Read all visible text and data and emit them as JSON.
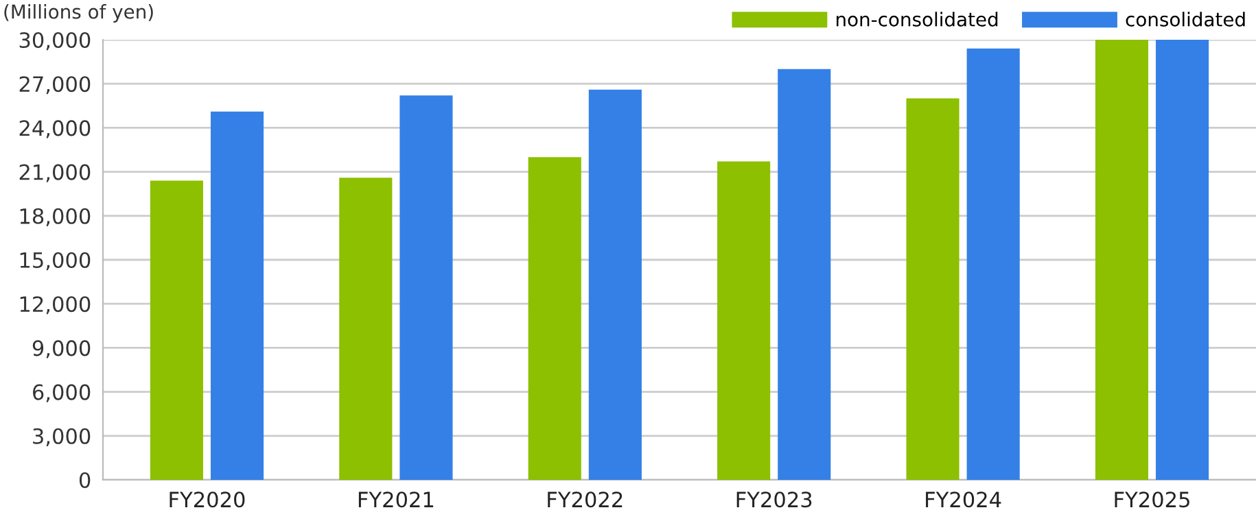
{
  "chart_data": {
    "type": "bar",
    "ylabel": "(Millions of yen)",
    "categories": [
      "FY2020",
      "FY2021",
      "FY2022",
      "FY2023",
      "FY2024",
      "FY2025"
    ],
    "series": [
      {
        "name": "non-consolidated",
        "color": "#8cc000",
        "values": [
          20400,
          20600,
          22000,
          21700,
          26000,
          30000
        ]
      },
      {
        "name": "consolidated",
        "color": "#3480e6",
        "values": [
          25100,
          26200,
          26600,
          28000,
          29400,
          30000
        ]
      }
    ],
    "ylim": [
      0,
      30000
    ],
    "yticks": [
      {
        "value": 0,
        "label": "0"
      },
      {
        "value": 3000,
        "label": "3,000"
      },
      {
        "value": 6000,
        "label": "6,000"
      },
      {
        "value": 9000,
        "label": "9,000"
      },
      {
        "value": 12000,
        "label": "12,000"
      },
      {
        "value": 15000,
        "label": "15,000"
      },
      {
        "value": 18000,
        "label": "18,000"
      },
      {
        "value": 21000,
        "label": "21,000"
      },
      {
        "value": 24000,
        "label": "24,000"
      },
      {
        "value": 27000,
        "label": "27,000"
      },
      {
        "value": 30000,
        "label": "30,000"
      }
    ],
    "grid": "y",
    "legend": "top right"
  }
}
